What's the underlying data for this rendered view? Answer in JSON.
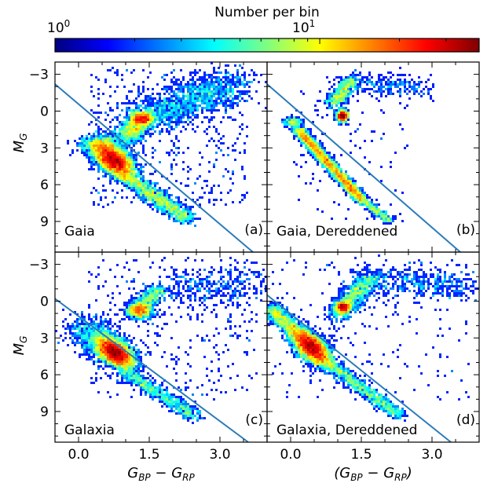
{
  "colorbar": {
    "label": "Number per bin",
    "scale": "log",
    "range": [
      1,
      40
    ],
    "tick_labels": [
      {
        "base": "10",
        "exp": "0",
        "value": 1
      },
      {
        "base": "10",
        "exp": "1",
        "value": 10
      }
    ],
    "colormap": [
      "#00007f",
      "#0000ff",
      "#007fff",
      "#00ffff",
      "#7fff7f",
      "#ffff00",
      "#ff7f00",
      "#ff0000",
      "#7f0000"
    ]
  },
  "axes": {
    "xlabel": {
      "base": "G",
      "sub1": "BP",
      "mid": " − G",
      "sub2": "RP"
    },
    "xlabel_dereddened": {
      "open": "(G",
      "sub1": "BP",
      "mid": " − G",
      "sub2": "RP",
      "close": ")"
    },
    "ylabel": {
      "base": "M",
      "sub": "G"
    },
    "xlim": [
      -0.5,
      4.0
    ],
    "ylim": [
      11.5,
      -4.0
    ],
    "x_ticks": [
      0.0,
      1.5,
      3.0
    ],
    "x_tick_labels": [
      "0.0",
      "1.5",
      "3.0"
    ],
    "y_ticks": [
      -3,
      0,
      3,
      6,
      9
    ],
    "y_tick_labels": [
      "−3",
      "0",
      "3",
      "6",
      "9"
    ],
    "grid": false
  },
  "chart_data": [
    {
      "type": "heatmap",
      "panel": "a",
      "label": "Gaia",
      "tag": "(a)",
      "cut_line": {
        "x": [
          -0.5,
          3.7
        ],
        "y": [
          -2.2,
          11.5
        ]
      },
      "features": [
        {
          "name": "main sequence turnoff",
          "x": 0.75,
          "y": 4.0,
          "peak": 35
        },
        {
          "name": "red clump",
          "x": 1.35,
          "y": 0.6,
          "peak": 20
        },
        {
          "name": "lower main sequence",
          "x": 1.5,
          "y": 6.5,
          "peak": 8
        },
        {
          "name": "giant branch",
          "x": 1.9,
          "y": -1.0,
          "peak": 6
        }
      ]
    },
    {
      "type": "heatmap",
      "panel": "b",
      "label": "Gaia, Dereddened",
      "tag": "(b)",
      "cut_line": {
        "x": [
          -0.5,
          3.6
        ],
        "y": [
          -2.2,
          11.5
        ]
      },
      "features": [
        {
          "name": "main sequence",
          "x": 0.6,
          "y": 4.0,
          "peak": 40
        },
        {
          "name": "red clump",
          "x": 1.1,
          "y": 0.4,
          "peak": 40
        },
        {
          "name": "upper giant branch",
          "x": 1.1,
          "y": -1.5,
          "peak": 10
        }
      ]
    },
    {
      "type": "heatmap",
      "panel": "c",
      "label": "Galaxia",
      "tag": "(c)",
      "cut_line": {
        "x": [
          -0.5,
          3.6
        ],
        "y": [
          -0.2,
          11.5
        ]
      },
      "features": [
        {
          "name": "main sequence turnoff",
          "x": 0.75,
          "y": 4.2,
          "peak": 38
        },
        {
          "name": "red clump",
          "x": 1.3,
          "y": 0.8,
          "peak": 18
        },
        {
          "name": "giant branch",
          "x": 1.6,
          "y": -0.8,
          "peak": 8
        }
      ]
    },
    {
      "type": "heatmap",
      "panel": "d",
      "label": "Galaxia, Dereddened",
      "tag": "(d)",
      "cut_line": {
        "x": [
          -0.5,
          3.4
        ],
        "y": [
          -0.5,
          11.5
        ]
      },
      "features": [
        {
          "name": "main sequence turnoff",
          "x": 0.45,
          "y": 3.8,
          "peak": 40
        },
        {
          "name": "red clump",
          "x": 1.1,
          "y": 0.5,
          "peak": 28
        },
        {
          "name": "giant branch",
          "x": 1.4,
          "y": -1.2,
          "peak": 10
        }
      ]
    }
  ]
}
